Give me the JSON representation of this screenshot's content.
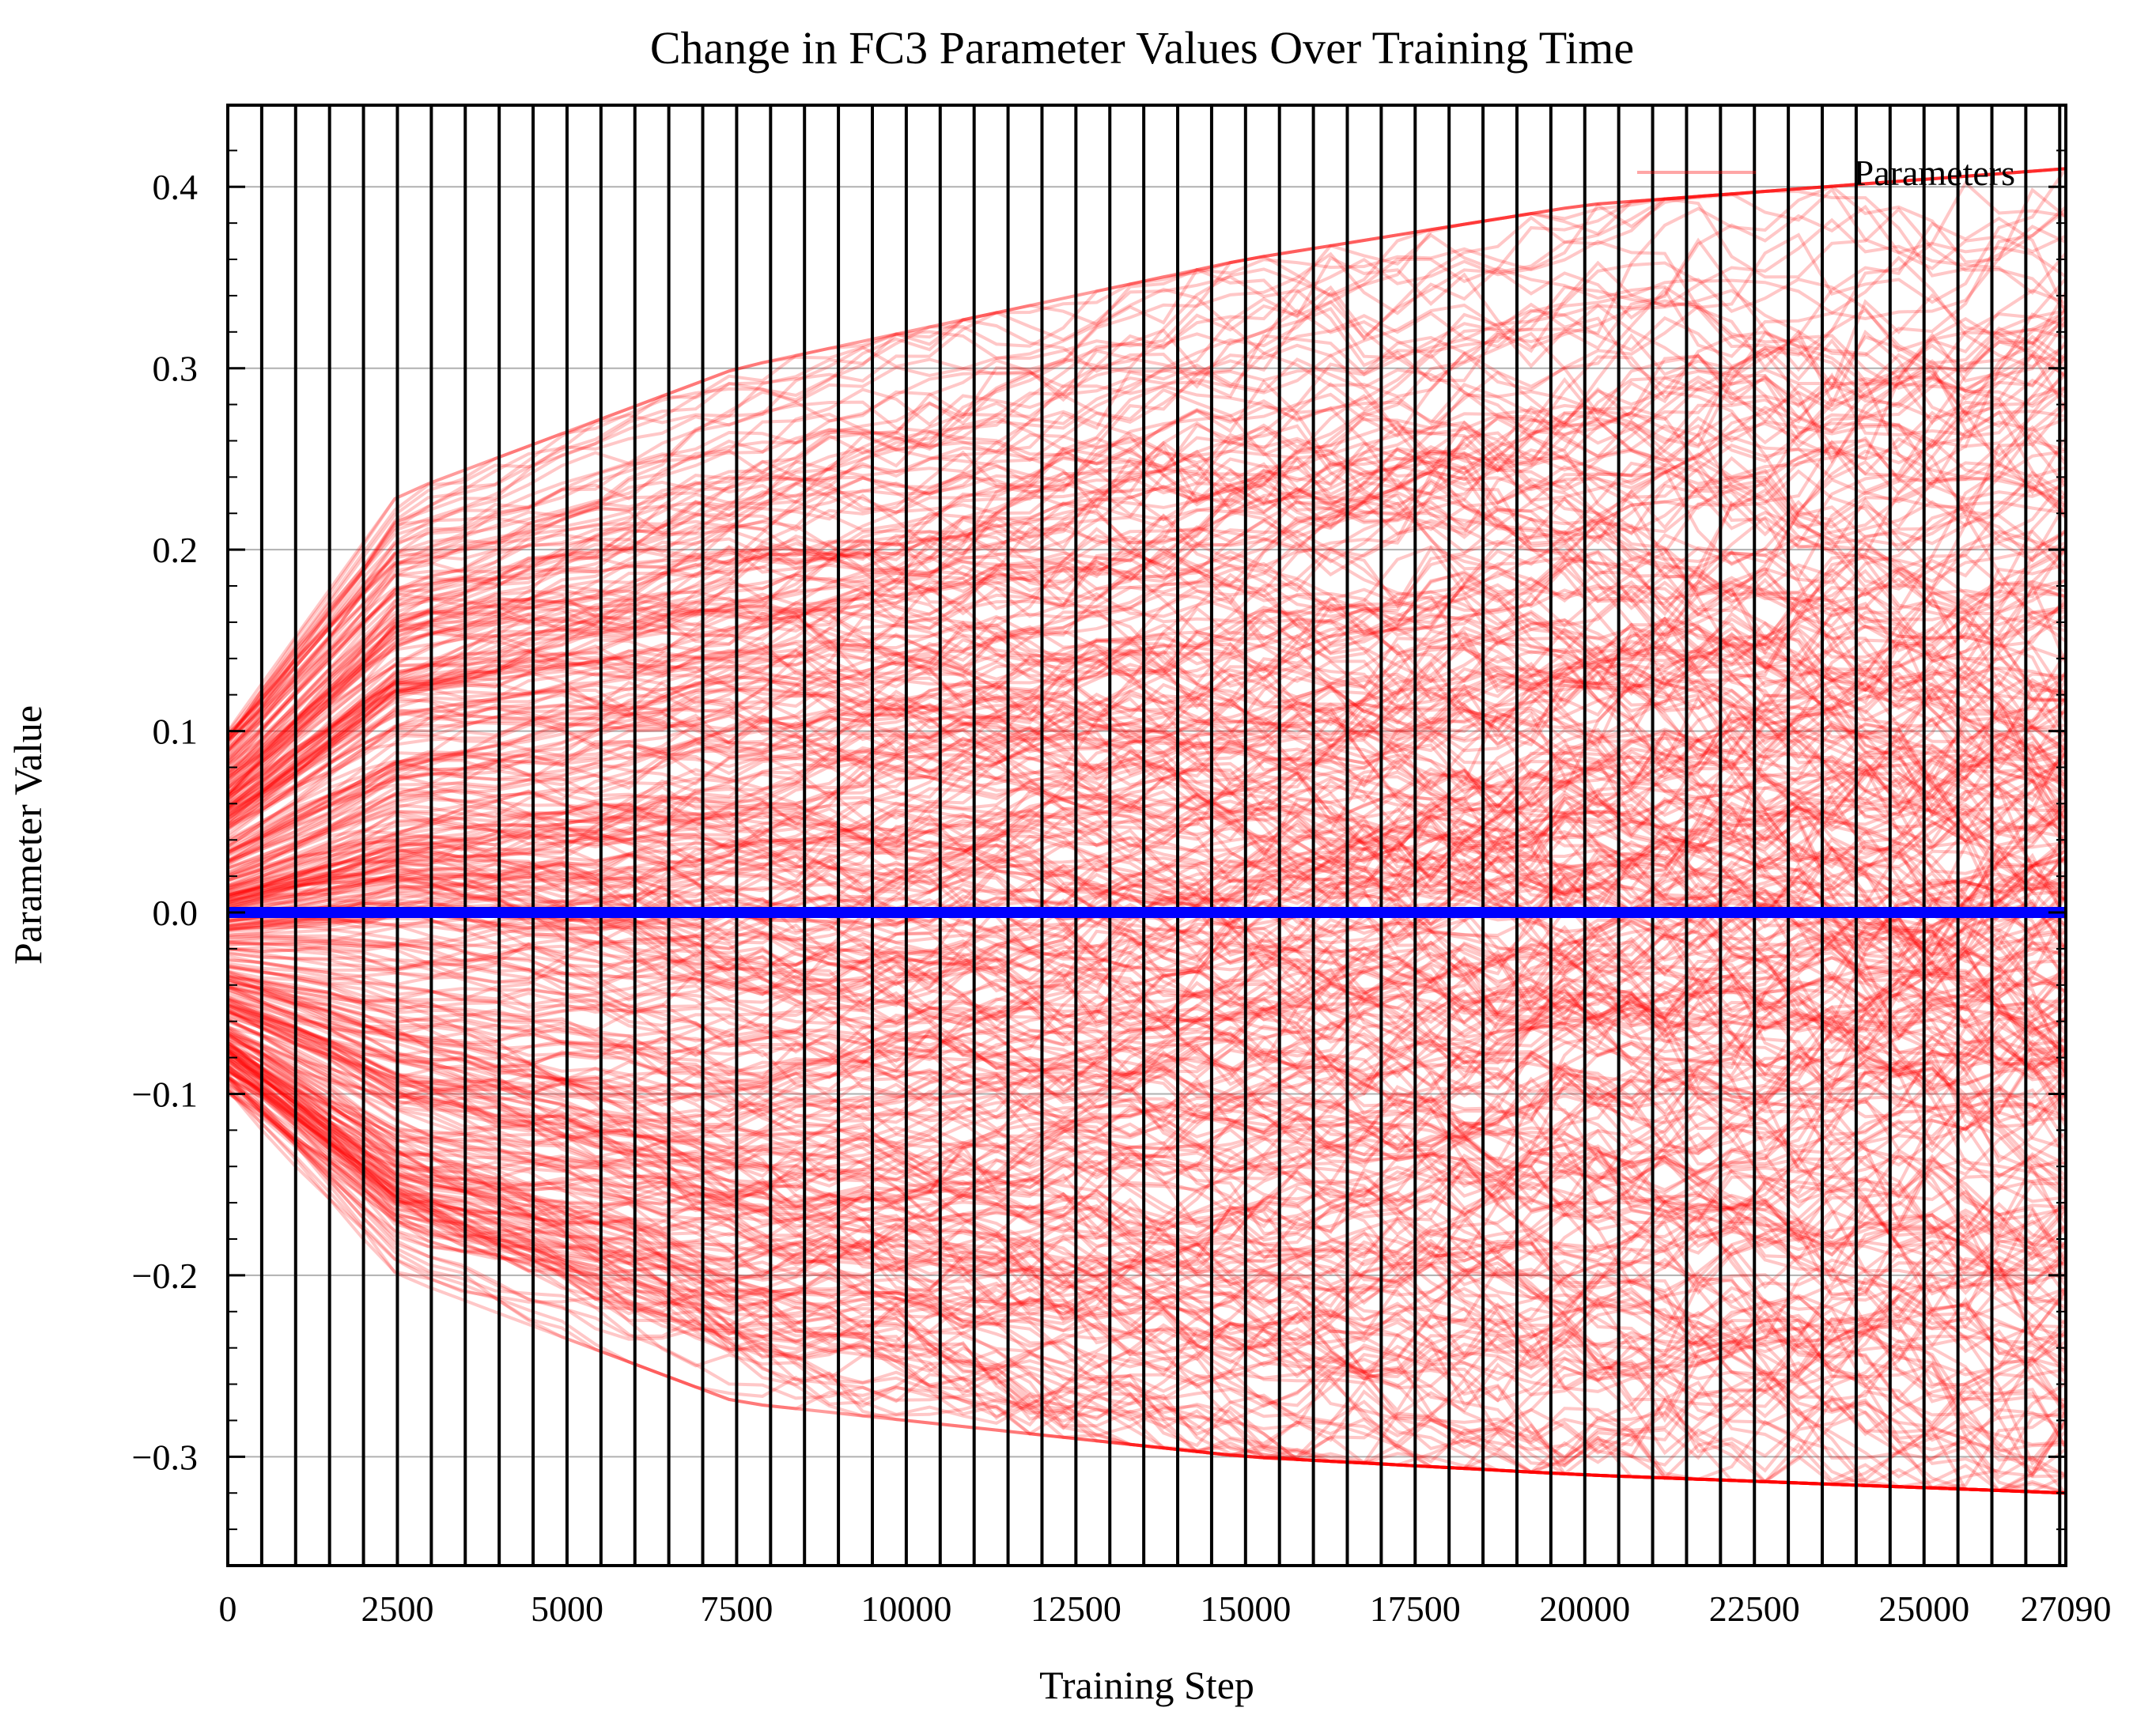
{
  "chart_data": {
    "type": "line",
    "title": "Change in FC3 Parameter Values Over Training Time",
    "xlabel": "Training Step",
    "ylabel": "Parameter Value",
    "xlim": [
      0,
      27090
    ],
    "ylim": [
      -0.36,
      0.445
    ],
    "x_ticks": [
      0,
      2500,
      5000,
      7500,
      10000,
      12500,
      15000,
      17500,
      20000,
      22500,
      25000,
      27090
    ],
    "x_tick_labels": [
      "0",
      "2500",
      "5000",
      "7500",
      "10000",
      "12500",
      "15000",
      "17500",
      "20000",
      "22500",
      "25000",
      "27090"
    ],
    "y_ticks": [
      -0.3,
      -0.2,
      -0.1,
      0.0,
      0.1,
      0.2,
      0.3,
      0.4
    ],
    "y_tick_labels": [
      "−0.3",
      "−0.2",
      "−0.1",
      "0.0",
      "0.1",
      "0.2",
      "0.3",
      "0.4"
    ],
    "grid": "horizontal",
    "legend": {
      "position": "top-right",
      "entries": [
        {
          "label": "Parameters",
          "color": "#ff0000"
        }
      ]
    },
    "parameter_series": {
      "name": "Parameters",
      "color": "#ff0000",
      "count": 400,
      "x_start": 0,
      "x_end": 27090,
      "start_range": [
        -0.1,
        0.1
      ],
      "envelope_upper": [
        [
          0,
          0.1
        ],
        [
          2500,
          0.23
        ],
        [
          7500,
          0.3
        ],
        [
          15000,
          0.36
        ],
        [
          20000,
          0.39
        ],
        [
          27090,
          0.41
        ]
      ],
      "envelope_lower": [
        [
          0,
          -0.1
        ],
        [
          2500,
          -0.2
        ],
        [
          7500,
          -0.27
        ],
        [
          15000,
          -0.3
        ],
        [
          20000,
          -0.31
        ],
        [
          27090,
          -0.32
        ]
      ]
    },
    "mean_line": {
      "color": "#0000ff",
      "value": 0.0,
      "x_start": 0,
      "x_end": 27090
    },
    "vertical_markers": {
      "color": "#000000",
      "x": [
        0,
        500,
        1000,
        1500,
        2000,
        2500,
        3000,
        3500,
        4000,
        4500,
        5000,
        5500,
        6000,
        6500,
        7000,
        7500,
        8000,
        8500,
        9000,
        9500,
        10000,
        10500,
        11000,
        11500,
        12000,
        12500,
        13000,
        13500,
        14000,
        14500,
        15000,
        15500,
        16000,
        16500,
        17000,
        17500,
        18000,
        18500,
        19000,
        19500,
        20000,
        20500,
        21000,
        21500,
        22000,
        22500,
        23000,
        23500,
        24000,
        24500,
        25000,
        25500,
        26000,
        26500,
        27000,
        27090
      ]
    }
  }
}
